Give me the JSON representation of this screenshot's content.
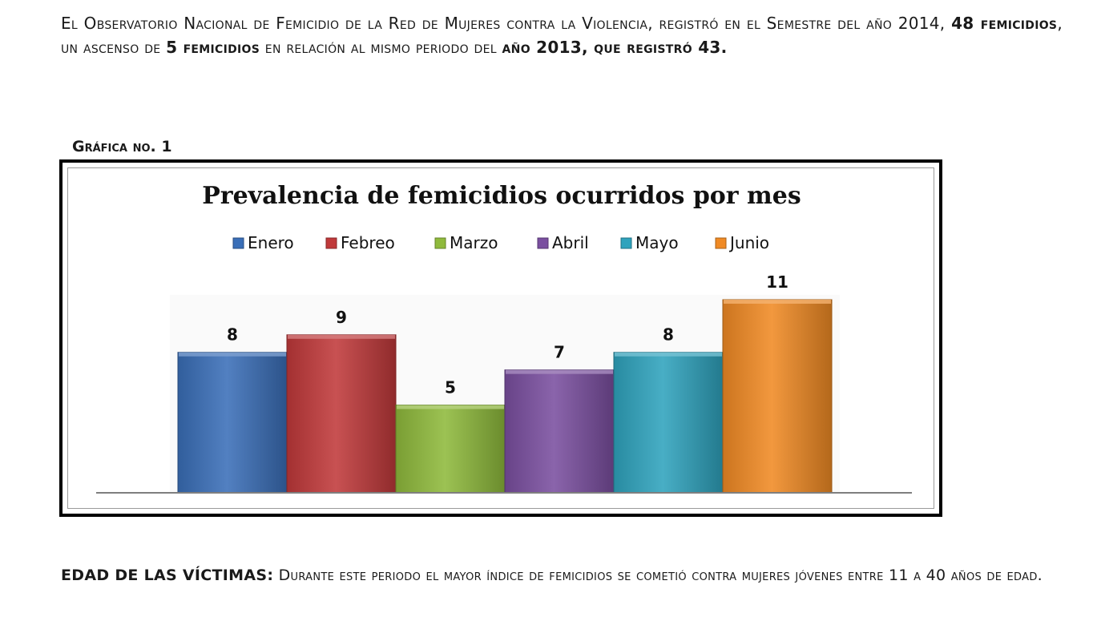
{
  "intro": {
    "p1": "El Observatorio Nacional de Femicidio de  la Red de Mujeres contra la Violencia, registró  en el Semestre del año 2014, ",
    "b1": "48 femicidios",
    "p2": ", un ascenso de ",
    "b2": "5 femicidios",
    "p3": "  en relación al mismo periodo del ",
    "b3": "año 2013, que registró 43."
  },
  "grafica_label": "Gráfica no. 1",
  "chart_data": {
    "type": "bar",
    "title": "Prevalencia de femicidios ocurridos por mes",
    "categories": [
      "Enero",
      "Febreo",
      "Marzo",
      "Abril",
      "Mayo",
      "Junio"
    ],
    "values": [
      8,
      9,
      5,
      7,
      8,
      11
    ],
    "colors": [
      "#3a6fb8",
      "#c0393a",
      "#8fba3c",
      "#7a4fa0",
      "#2fa3bd",
      "#f08a24"
    ],
    "legend_position": "top",
    "ylim": [
      0,
      11
    ],
    "xlabel": "",
    "ylabel": ""
  },
  "edad": {
    "label": "EDAD DE LAS VÍCTIMAS:",
    "text": " Durante este periodo el mayor índice de femicidios se cometió contra mujeres jóvenes entre 11 a  40 años de edad."
  }
}
